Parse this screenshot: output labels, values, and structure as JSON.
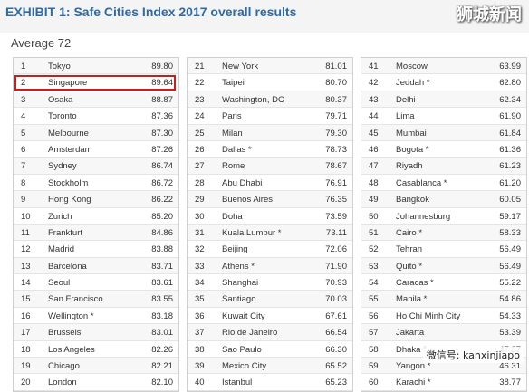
{
  "header": {
    "title": "EXHIBIT 1: Safe Cities Index 2017 overall results",
    "brand": "狮城新闻"
  },
  "subtitle": "Average 72",
  "footer_watermark": "微信号: kanxinjiapo",
  "colors": {
    "title": "#2f6aa3",
    "highlight": "#c81e1e"
  },
  "chart_data": {
    "type": "table",
    "title": "EXHIBIT 1: Safe Cities Index 2017 overall results",
    "subtitle": "Average 72",
    "highlighted_rank": 2,
    "columns": [
      [
        {
          "rank": "1",
          "city": "Tokyo",
          "score": "89.80"
        },
        {
          "rank": "2",
          "city": "Singapore",
          "score": "89.64"
        },
        {
          "rank": "3",
          "city": "Osaka",
          "score": "88.87"
        },
        {
          "rank": "4",
          "city": "Toronto",
          "score": "87.36"
        },
        {
          "rank": "5",
          "city": "Melbourne",
          "score": "87.30"
        },
        {
          "rank": "6",
          "city": "Amsterdam",
          "score": "87.26"
        },
        {
          "rank": "7",
          "city": "Sydney",
          "score": "86.74"
        },
        {
          "rank": "8",
          "city": "Stockholm",
          "score": "86.72"
        },
        {
          "rank": "9",
          "city": "Hong Kong",
          "score": "86.22"
        },
        {
          "rank": "10",
          "city": "Zurich",
          "score": "85.20"
        },
        {
          "rank": "11",
          "city": "Frankfurt",
          "score": "84.86"
        },
        {
          "rank": "12",
          "city": "Madrid",
          "score": "83.88"
        },
        {
          "rank": "13",
          "city": "Barcelona",
          "score": "83.71"
        },
        {
          "rank": "14",
          "city": "Seoul",
          "score": "83.61"
        },
        {
          "rank": "15",
          "city": "San Francisco",
          "score": "83.55"
        },
        {
          "rank": "16",
          "city": "Wellington *",
          "score": "83.18"
        },
        {
          "rank": "17",
          "city": "Brussels",
          "score": "83.01"
        },
        {
          "rank": "18",
          "city": "Los Angeles",
          "score": "82.26"
        },
        {
          "rank": "19",
          "city": "Chicago",
          "score": "82.21"
        },
        {
          "rank": "20",
          "city": "London",
          "score": "82.10"
        }
      ],
      [
        {
          "rank": "21",
          "city": "New York",
          "score": "81.01"
        },
        {
          "rank": "22",
          "city": "Taipei",
          "score": "80.70"
        },
        {
          "rank": "23",
          "city": "Washington, DC",
          "score": "80.37"
        },
        {
          "rank": "24",
          "city": "Paris",
          "score": "79.71"
        },
        {
          "rank": "25",
          "city": "Milan",
          "score": "79.30"
        },
        {
          "rank": "26",
          "city": "Dallas *",
          "score": "78.73"
        },
        {
          "rank": "27",
          "city": "Rome",
          "score": "78.67"
        },
        {
          "rank": "28",
          "city": "Abu Dhabi",
          "score": "76.91"
        },
        {
          "rank": "29",
          "city": "Buenos Aires",
          "score": "76.35"
        },
        {
          "rank": "30",
          "city": "Doha",
          "score": "73.59"
        },
        {
          "rank": "31",
          "city": "Kuala Lumpur *",
          "score": "73.11"
        },
        {
          "rank": "32",
          "city": "Beijing",
          "score": "72.06"
        },
        {
          "rank": "33",
          "city": "Athens *",
          "score": "71.90"
        },
        {
          "rank": "34",
          "city": "Shanghai",
          "score": "70.93"
        },
        {
          "rank": "35",
          "city": "Santiago",
          "score": "70.03"
        },
        {
          "rank": "36",
          "city": "Kuwait City",
          "score": "67.61"
        },
        {
          "rank": "37",
          "city": "Rio de Janeiro",
          "score": "66.54"
        },
        {
          "rank": "38",
          "city": "Sao Paulo",
          "score": "66.30"
        },
        {
          "rank": "39",
          "city": "Mexico City",
          "score": "65.52"
        },
        {
          "rank": "40",
          "city": "Istanbul",
          "score": "65.23"
        }
      ],
      [
        {
          "rank": "41",
          "city": "Moscow",
          "score": "63.99"
        },
        {
          "rank": "42",
          "city": "Jeddah *",
          "score": "62.80"
        },
        {
          "rank": "43",
          "city": "Delhi",
          "score": "62.34"
        },
        {
          "rank": "44",
          "city": "Lima",
          "score": "61.90"
        },
        {
          "rank": "45",
          "city": "Mumbai",
          "score": "61.84"
        },
        {
          "rank": "46",
          "city": "Bogota *",
          "score": "61.36"
        },
        {
          "rank": "47",
          "city": "Riyadh",
          "score": "61.23"
        },
        {
          "rank": "48",
          "city": "Casablanca *",
          "score": "61.20"
        },
        {
          "rank": "49",
          "city": "Bangkok",
          "score": "60.05"
        },
        {
          "rank": "50",
          "city": "Johannesburg",
          "score": "59.17"
        },
        {
          "rank": "51",
          "city": "Cairo *",
          "score": "58.33"
        },
        {
          "rank": "52",
          "city": "Tehran",
          "score": "56.49"
        },
        {
          "rank": "53",
          "city": "Quito *",
          "score": "56.49"
        },
        {
          "rank": "54",
          "city": "Caracas *",
          "score": "55.22"
        },
        {
          "rank": "55",
          "city": "Manila *",
          "score": "54.86"
        },
        {
          "rank": "56",
          "city": "Ho Chi Minh City",
          "score": "54.33"
        },
        {
          "rank": "57",
          "city": "Jakarta",
          "score": "53.39"
        },
        {
          "rank": "58",
          "city": "Dhaka *",
          "score": "47.37"
        },
        {
          "rank": "59",
          "city": "Yangon *",
          "score": "46.31"
        },
        {
          "rank": "60",
          "city": "Karachi *",
          "score": "38.77"
        }
      ]
    ]
  }
}
